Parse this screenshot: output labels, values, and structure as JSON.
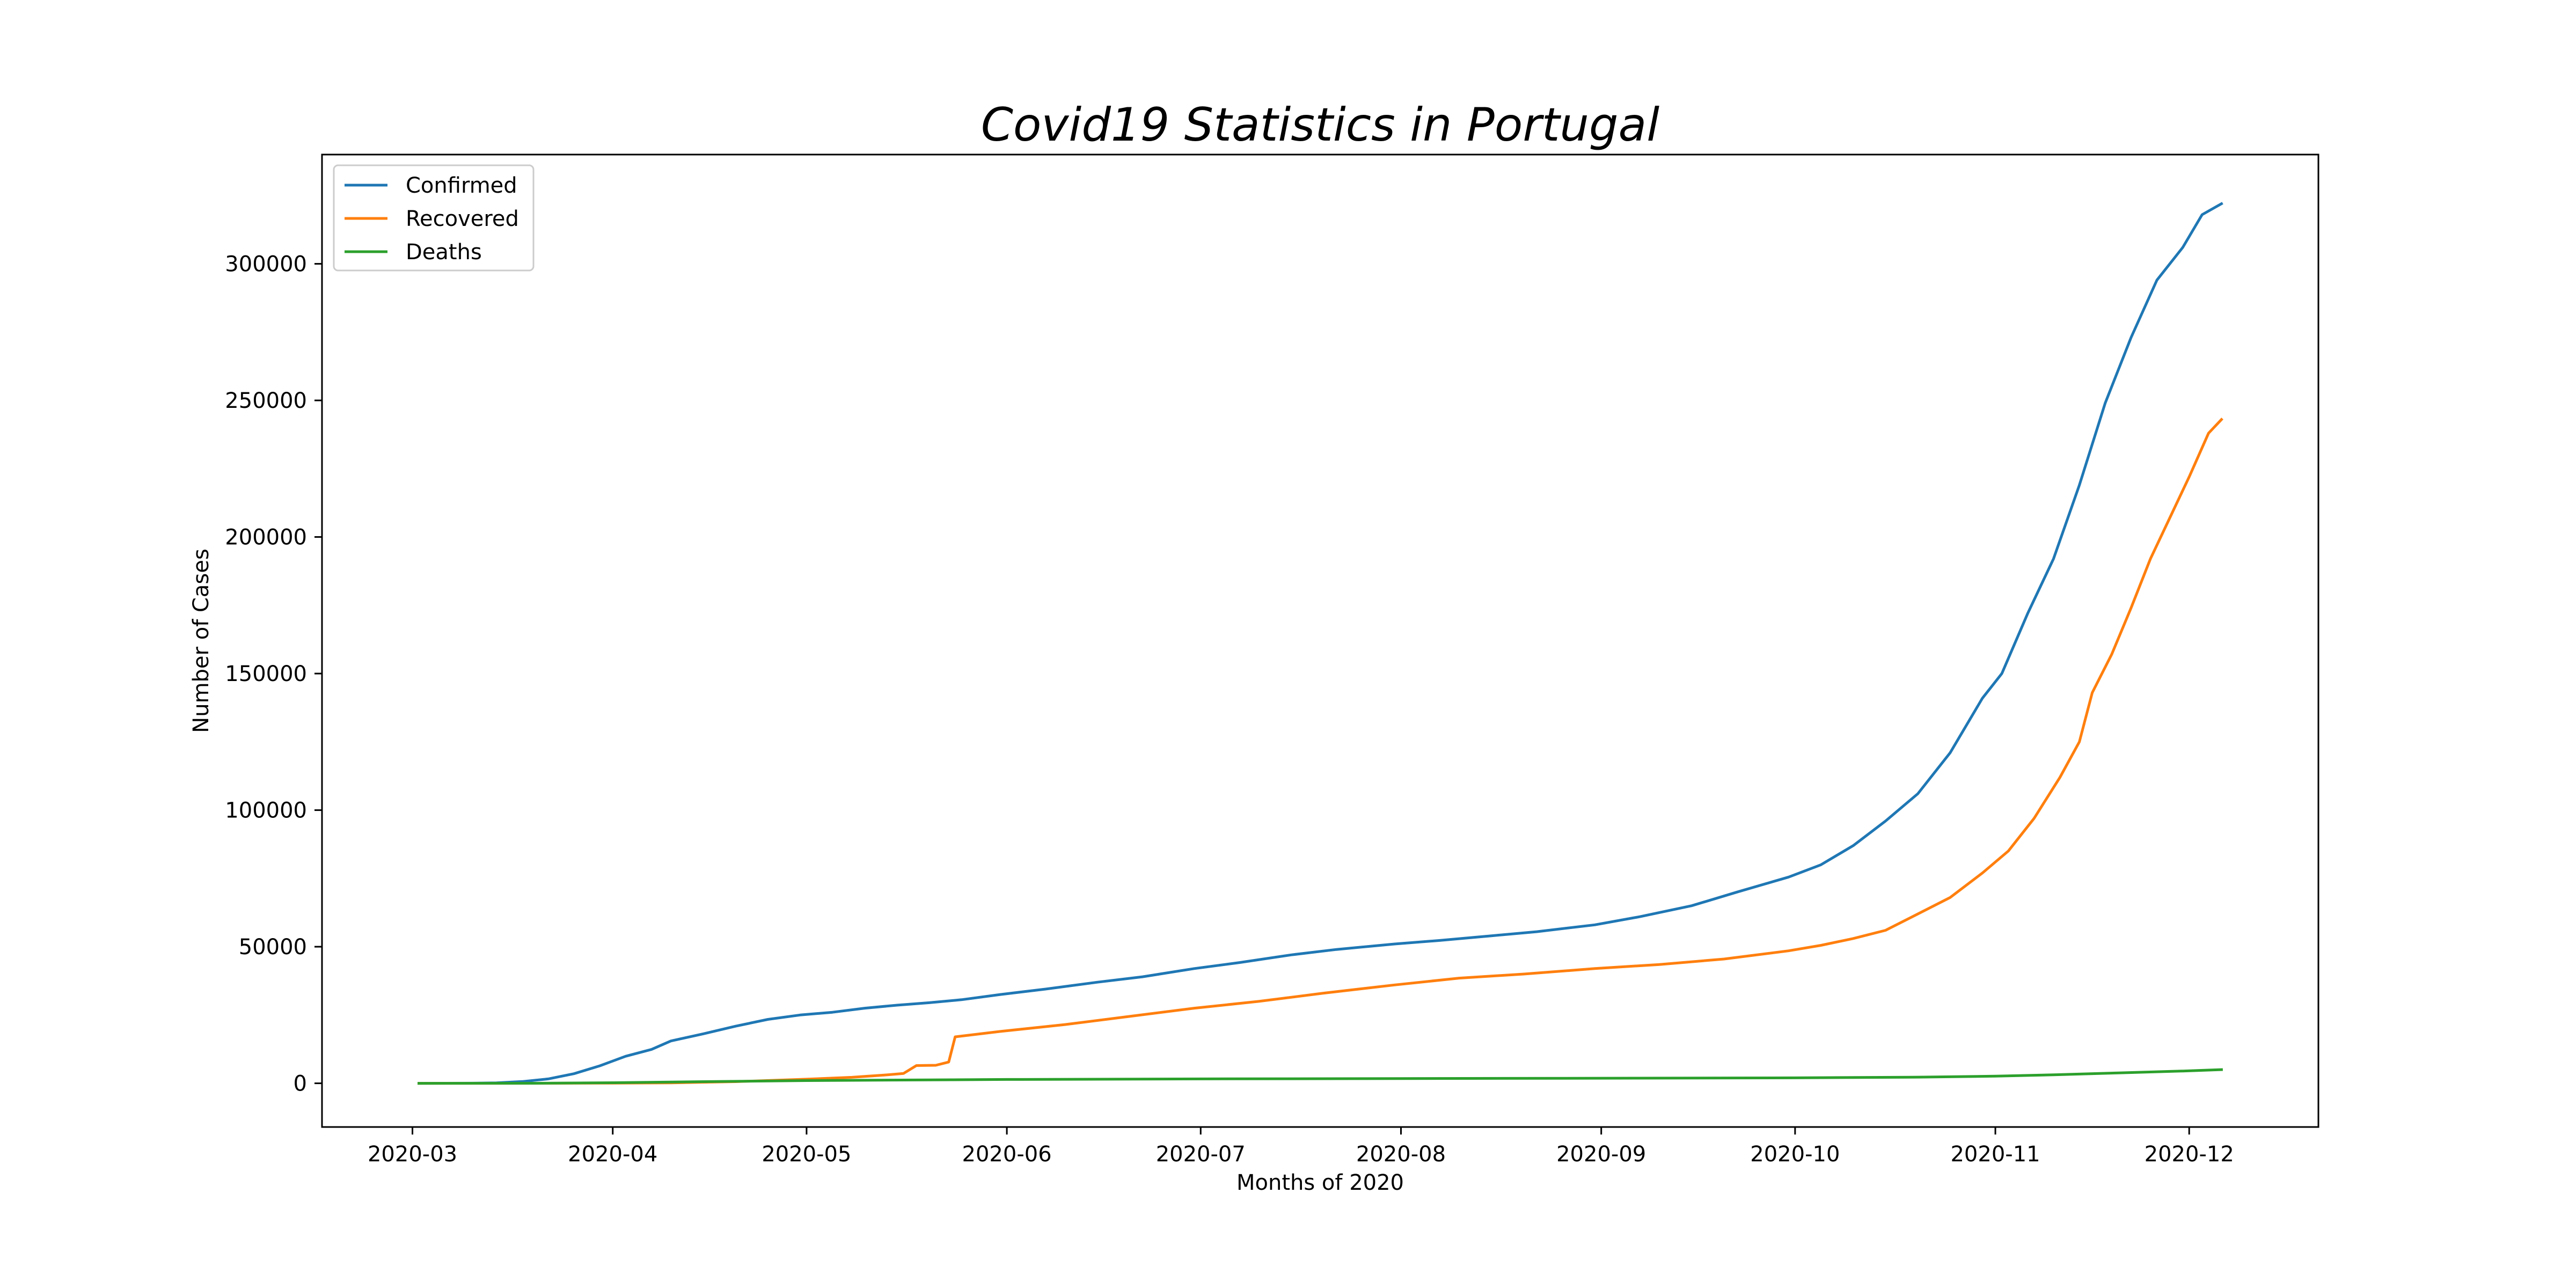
{
  "chart_data": {
    "type": "line",
    "title": "Covid19 Statistics in Portugal",
    "xlabel": "Months of 2020",
    "ylabel": "Number of Cases",
    "x_start": "2020-03-02",
    "x_end": "2020-12-06",
    "xlim": [
      "2020-02-16",
      "2020-12-21"
    ],
    "ylim": [
      -16000,
      340000
    ],
    "x_ticks": [
      "2020-03",
      "2020-04",
      "2020-05",
      "2020-06",
      "2020-07",
      "2020-08",
      "2020-09",
      "2020-10",
      "2020-11",
      "2020-12"
    ],
    "y_ticks": [
      0,
      50000,
      100000,
      150000,
      200000,
      250000,
      300000
    ],
    "grid": false,
    "legend": "top-left",
    "series": [
      {
        "name": "Confirmed",
        "color": "#1f77b4",
        "points": [
          [
            "2020-03-02",
            0
          ],
          [
            "2020-03-10",
            40
          ],
          [
            "2020-03-14",
            170
          ],
          [
            "2020-03-18",
            650
          ],
          [
            "2020-03-22",
            1600
          ],
          [
            "2020-03-26",
            3500
          ],
          [
            "2020-03-30",
            6400
          ],
          [
            "2020-04-03",
            9900
          ],
          [
            "2020-04-07",
            12400
          ],
          [
            "2020-04-10",
            15500
          ],
          [
            "2020-04-15",
            18100
          ],
          [
            "2020-04-20",
            20900
          ],
          [
            "2020-04-25",
            23400
          ],
          [
            "2020-04-30",
            25000
          ],
          [
            "2020-05-05",
            26000
          ],
          [
            "2020-05-10",
            27500
          ],
          [
            "2020-05-15",
            28600
          ],
          [
            "2020-05-20",
            29500
          ],
          [
            "2020-05-25",
            30600
          ],
          [
            "2020-05-31",
            32500
          ],
          [
            "2020-06-07",
            34500
          ],
          [
            "2020-06-15",
            37000
          ],
          [
            "2020-06-22",
            39000
          ],
          [
            "2020-06-30",
            42000
          ],
          [
            "2020-07-07",
            44200
          ],
          [
            "2020-07-15",
            47000
          ],
          [
            "2020-07-22",
            49000
          ],
          [
            "2020-07-31",
            51000
          ],
          [
            "2020-08-07",
            52300
          ],
          [
            "2020-08-15",
            54000
          ],
          [
            "2020-08-22",
            55500
          ],
          [
            "2020-08-31",
            58000
          ],
          [
            "2020-09-07",
            61000
          ],
          [
            "2020-09-15",
            65000
          ],
          [
            "2020-09-22",
            70000
          ],
          [
            "2020-09-30",
            75500
          ],
          [
            "2020-10-05",
            80000
          ],
          [
            "2020-10-10",
            87000
          ],
          [
            "2020-10-15",
            96000
          ],
          [
            "2020-10-20",
            106000
          ],
          [
            "2020-10-25",
            121000
          ],
          [
            "2020-10-30",
            141000
          ],
          [
            "2020-11-02",
            150000
          ],
          [
            "2020-11-06",
            172000
          ],
          [
            "2020-11-10",
            192000
          ],
          [
            "2020-11-14",
            219000
          ],
          [
            "2020-11-18",
            249000
          ],
          [
            "2020-11-22",
            273000
          ],
          [
            "2020-11-26",
            294000
          ],
          [
            "2020-11-30",
            306000
          ],
          [
            "2020-12-03",
            318000
          ],
          [
            "2020-12-06",
            322000
          ]
        ]
      },
      {
        "name": "Recovered",
        "color": "#ff7f0e",
        "points": [
          [
            "2020-03-02",
            0
          ],
          [
            "2020-03-15",
            0
          ],
          [
            "2020-03-30",
            50
          ],
          [
            "2020-04-10",
            150
          ],
          [
            "2020-04-20",
            600
          ],
          [
            "2020-05-01",
            1500
          ],
          [
            "2020-05-08",
            2200
          ],
          [
            "2020-05-13",
            3000
          ],
          [
            "2020-05-16",
            3600
          ],
          [
            "2020-05-18",
            6500
          ],
          [
            "2020-05-21",
            6600
          ],
          [
            "2020-05-23",
            7800
          ],
          [
            "2020-05-24",
            17000
          ],
          [
            "2020-05-31",
            19000
          ],
          [
            "2020-06-10",
            21500
          ],
          [
            "2020-06-20",
            24500
          ],
          [
            "2020-06-30",
            27500
          ],
          [
            "2020-07-10",
            30000
          ],
          [
            "2020-07-20",
            33000
          ],
          [
            "2020-07-31",
            36000
          ],
          [
            "2020-08-10",
            38500
          ],
          [
            "2020-08-20",
            40000
          ],
          [
            "2020-08-31",
            42000
          ],
          [
            "2020-09-10",
            43500
          ],
          [
            "2020-09-20",
            45500
          ],
          [
            "2020-09-30",
            48500
          ],
          [
            "2020-10-05",
            50500
          ],
          [
            "2020-10-10",
            53000
          ],
          [
            "2020-10-15",
            56000
          ],
          [
            "2020-10-20",
            62000
          ],
          [
            "2020-10-25",
            68000
          ],
          [
            "2020-10-30",
            77000
          ],
          [
            "2020-11-03",
            85000
          ],
          [
            "2020-11-07",
            97000
          ],
          [
            "2020-11-11",
            112000
          ],
          [
            "2020-11-14",
            125000
          ],
          [
            "2020-11-16",
            143000
          ],
          [
            "2020-11-19",
            157000
          ],
          [
            "2020-11-22",
            174000
          ],
          [
            "2020-11-25",
            192000
          ],
          [
            "2020-11-28",
            207000
          ],
          [
            "2020-12-01",
            222000
          ],
          [
            "2020-12-04",
            238000
          ],
          [
            "2020-12-06",
            243000
          ]
        ]
      },
      {
        "name": "Deaths",
        "color": "#2ca02c",
        "points": [
          [
            "2020-03-02",
            0
          ],
          [
            "2020-03-20",
            10
          ],
          [
            "2020-04-01",
            200
          ],
          [
            "2020-04-15",
            600
          ],
          [
            "2020-05-01",
            1000
          ],
          [
            "2020-06-01",
            1400
          ],
          [
            "2020-07-01",
            1600
          ],
          [
            "2020-08-01",
            1750
          ],
          [
            "2020-09-01",
            1850
          ],
          [
            "2020-10-01",
            2000
          ],
          [
            "2020-10-20",
            2250
          ],
          [
            "2020-11-01",
            2600
          ],
          [
            "2020-11-10",
            3100
          ],
          [
            "2020-11-20",
            3800
          ],
          [
            "2020-11-30",
            4500
          ],
          [
            "2020-12-06",
            5000
          ]
        ]
      }
    ]
  }
}
